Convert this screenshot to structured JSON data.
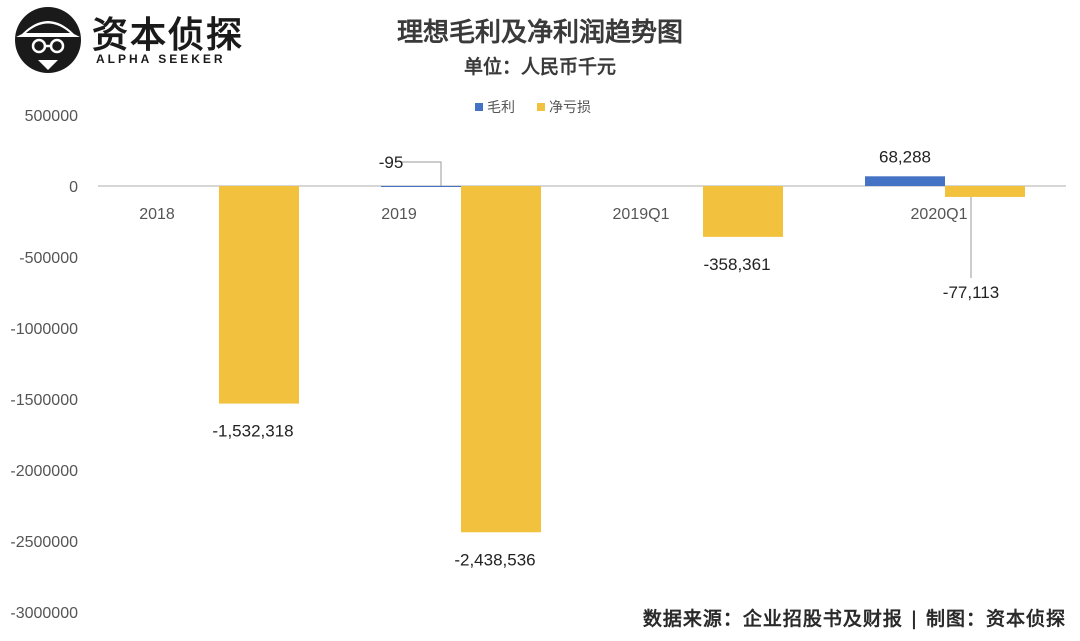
{
  "brand": {
    "name": "资本侦探",
    "subtitle": "ALPHA SEEKER"
  },
  "chart_data": {
    "type": "bar",
    "title": "理想毛利及净利润趋势图",
    "subtitle": "单位：人民币千元",
    "categories": [
      "2018",
      "2019",
      "2019Q1",
      "2020Q1"
    ],
    "series": [
      {
        "name": "毛利",
        "color": "#4472C4",
        "values": [
          null,
          -95,
          null,
          68288
        ]
      },
      {
        "name": "净亏损",
        "color": "#F2C13E",
        "values": [
          -1532318,
          -2438536,
          -358361,
          -77113
        ]
      }
    ],
    "data_labels": [
      {
        "series": 1,
        "category": 0,
        "text": "-1,532,318"
      },
      {
        "series": 1,
        "category": 1,
        "text": "-2,438,536"
      },
      {
        "series": 1,
        "category": 2,
        "text": "-358,361"
      },
      {
        "series": 1,
        "category": 3,
        "text": "-77,113"
      },
      {
        "series": 0,
        "category": 1,
        "text": "-95"
      },
      {
        "series": 0,
        "category": 3,
        "text": "68,288"
      }
    ],
    "yticks": [
      "500000",
      "0",
      "-500000",
      "-1000000",
      "-1500000",
      "-2000000",
      "-2500000",
      "-3000000"
    ],
    "ylim": [
      -3000000,
      500000
    ],
    "grid": false,
    "legend_position": "top"
  },
  "footer": {
    "source": "数据来源：企业招股书及财报 | 制图：资本侦探"
  }
}
